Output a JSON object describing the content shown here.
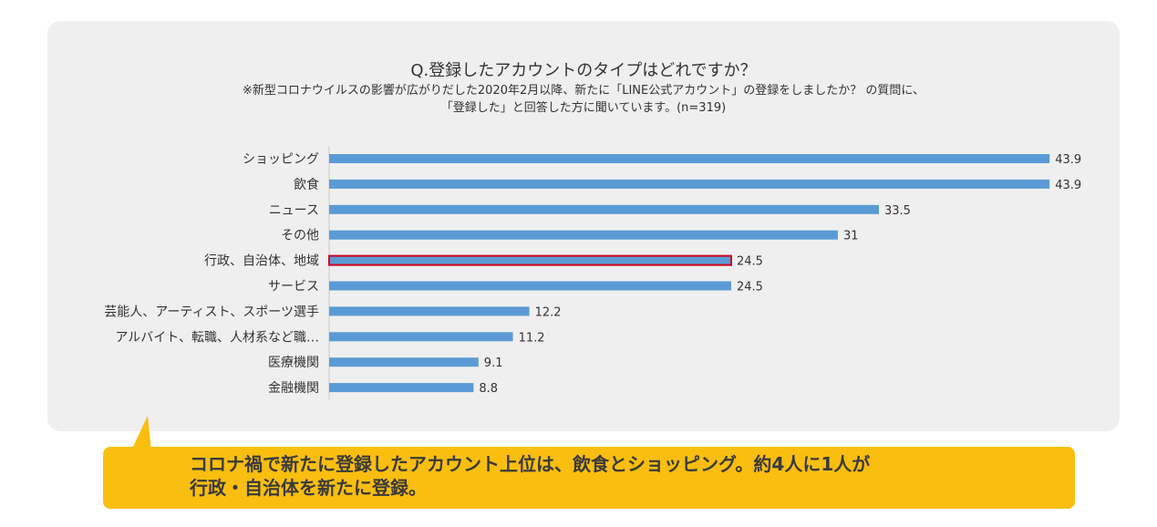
{
  "chart_data": {
    "type": "bar",
    "orientation": "horizontal",
    "title": "Q.登録したアカウントのタイプはどれですか？",
    "subtitle_lines": [
      "※新型コロナウイルスの影響が広がりだした2020年2月以降、新たに「LINE公式アカウント」の登録をしましたか？ の質問に、",
      "「登録した」と回答した方に聞いています。(n=319)"
    ],
    "categories": [
      "ショッピング",
      "飲食",
      "ニュース",
      "その他",
      "行政、自治体、地域",
      "サービス",
      "芸能人、アーティスト、スポーツ選手",
      "アルバイト、転職、人材系など職…",
      "医療機関",
      "金融機関"
    ],
    "values": [
      43.9,
      43.9,
      33.5,
      31,
      24.5,
      24.5,
      12.2,
      11.2,
      9.1,
      8.8
    ],
    "highlight_index": 4,
    "colors": {
      "bar": "#5b9bd5",
      "highlight_border": "#d0021b",
      "panel": "#efefef"
    },
    "grid": false,
    "legend": "none"
  },
  "callout": {
    "line1": "コロナ禍で新たに登録したアカウント上位は、飲食とショッピング。約4人に1人が",
    "line2": "行政・自治体を新たに登録。",
    "color": "#f9be0f"
  }
}
